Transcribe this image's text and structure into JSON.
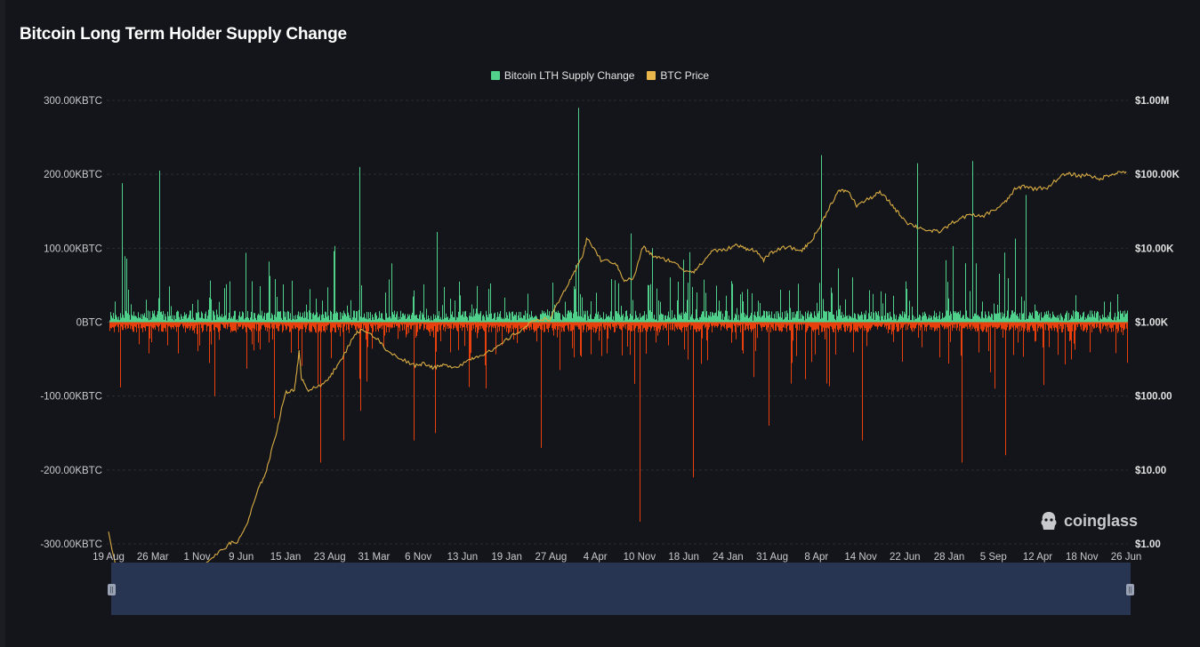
{
  "title": "Bitcoin Long Term Holder Supply Change",
  "legend": [
    {
      "name": "Bitcoin LTH Supply Change",
      "color": "#4fd18b"
    },
    {
      "name": "BTC Price",
      "color": "#e8b64a"
    }
  ],
  "watermark": "coinglass",
  "colors": {
    "background": "#14151a",
    "positive_bar": "#4fd18b",
    "negative_bar": "#e8400d",
    "price_line": "#d9ad43",
    "grid": "#2a2c33",
    "navigator": "#273552",
    "navigator_line": "#6f86c2"
  },
  "chart_data": {
    "type": "bar",
    "series": [
      {
        "name": "Bitcoin LTH Supply Change",
        "axis": "left",
        "unit": "BTC"
      },
      {
        "name": "BTC Price",
        "axis": "right",
        "type": "line",
        "scale": "log",
        "unit": "USD"
      }
    ],
    "y_left": {
      "range": [
        -300000,
        300000
      ],
      "ticks": [
        {
          "value": 300000,
          "label": "300.00KBTC"
        },
        {
          "value": 200000,
          "label": "200.00KBTC"
        },
        {
          "value": 100000,
          "label": "100.00KBTC"
        },
        {
          "value": 0,
          "label": "0BTC"
        },
        {
          "value": -100000,
          "label": "-100.00KBTC"
        },
        {
          "value": -200000,
          "label": "-200.00KBTC"
        },
        {
          "value": -300000,
          "label": "-300.00KBTC"
        }
      ]
    },
    "y_right": {
      "scale": "log",
      "range": [
        1,
        1000000
      ],
      "ticks": [
        {
          "value": 1000000,
          "label": "$1.00M"
        },
        {
          "value": 100000,
          "label": "$100.00K"
        },
        {
          "value": 10000,
          "label": "$10.00K"
        },
        {
          "value": 1000,
          "label": "$1.00K"
        },
        {
          "value": 100,
          "label": "$100.00"
        },
        {
          "value": 10,
          "label": "$10.00"
        },
        {
          "value": 1,
          "label": "$1.00"
        }
      ]
    },
    "x_ticks": [
      "19 Aug",
      "26 Mar",
      "1 Nov",
      "9 Jun",
      "15 Jan",
      "23 Aug",
      "31 Mar",
      "6 Nov",
      "13 Jun",
      "19 Jan",
      "27 Aug",
      "4 Apr",
      "10 Nov",
      "18 Jun",
      "24 Jan",
      "31 Aug",
      "8 Apr",
      "14 Nov",
      "22 Jun",
      "28 Jan",
      "5 Sep",
      "12 Apr",
      "18 Nov",
      "26 Jun"
    ],
    "price_points": [
      [
        0,
        1.4
      ],
      [
        0.3,
        0.22
      ],
      [
        0.6,
        0.32
      ],
      [
        1.0,
        0.2
      ],
      [
        1.3,
        0.32
      ],
      [
        1.6,
        0.3
      ],
      [
        2.0,
        0.5
      ],
      [
        2.3,
        0.7
      ],
      [
        2.6,
        1.0
      ],
      [
        2.8,
        1.1
      ],
      [
        3.0,
        2.0
      ],
      [
        3.2,
        5.0
      ],
      [
        3.4,
        10.0
      ],
      [
        3.6,
        30
      ],
      [
        3.8,
        110
      ],
      [
        4.0,
        120
      ],
      [
        4.1,
        400
      ],
      [
        4.15,
        180
      ],
      [
        4.3,
        120
      ],
      [
        4.6,
        140
      ],
      [
        4.8,
        200
      ],
      [
        5.0,
        300
      ],
      [
        5.3,
        700
      ],
      [
        5.5,
        800
      ],
      [
        5.8,
        580
      ],
      [
        6.0,
        400
      ],
      [
        6.3,
        320
      ],
      [
        6.6,
        260
      ],
      [
        6.8,
        280
      ],
      [
        7.0,
        240
      ],
      [
        7.2,
        260
      ],
      [
        7.5,
        250
      ],
      [
        7.8,
        320
      ],
      [
        8.0,
        360
      ],
      [
        8.3,
        420
      ],
      [
        8.6,
        600
      ],
      [
        8.9,
        800
      ],
      [
        9.2,
        1100
      ],
      [
        9.5,
        1100
      ],
      [
        9.8,
        2600
      ],
      [
        10.0,
        4300
      ],
      [
        10.2,
        8000
      ],
      [
        10.3,
        13800
      ],
      [
        10.6,
        6900
      ],
      [
        10.9,
        6400
      ],
      [
        11.1,
        3700
      ],
      [
        11.3,
        3900
      ],
      [
        11.5,
        10500
      ],
      [
        11.7,
        8000
      ],
      [
        11.9,
        7200
      ],
      [
        12.1,
        6800
      ],
      [
        12.4,
        5000
      ],
      [
        12.6,
        4900
      ],
      [
        12.8,
        6500
      ],
      [
        13.0,
        9500
      ],
      [
        13.2,
        9200
      ],
      [
        13.5,
        11000
      ],
      [
        13.7,
        10000
      ],
      [
        13.9,
        9500
      ],
      [
        14.1,
        7000
      ],
      [
        14.3,
        9000
      ],
      [
        14.6,
        10500
      ],
      [
        14.9,
        9200
      ],
      [
        15.1,
        12000
      ],
      [
        15.3,
        19000
      ],
      [
        15.5,
        35000
      ],
      [
        15.7,
        58000
      ],
      [
        15.9,
        61000
      ],
      [
        16.1,
        38000
      ],
      [
        16.4,
        48000
      ],
      [
        16.6,
        57000
      ],
      [
        16.8,
        43000
      ],
      [
        17.0,
        30000
      ],
      [
        17.2,
        22000
      ],
      [
        17.4,
        19500
      ],
      [
        17.7,
        17000
      ],
      [
        17.9,
        16800
      ],
      [
        18.2,
        23000
      ],
      [
        18.5,
        28000
      ],
      [
        18.8,
        27000
      ],
      [
        19.1,
        34000
      ],
      [
        19.3,
        42000
      ],
      [
        19.5,
        62000
      ],
      [
        19.7,
        70000
      ],
      [
        19.9,
        64000
      ],
      [
        20.2,
        66000
      ],
      [
        20.5,
        96000
      ],
      [
        20.7,
        101000
      ],
      [
        20.9,
        95000
      ],
      [
        21.1,
        100000
      ],
      [
        21.3,
        84000
      ],
      [
        21.5,
        97000
      ],
      [
        21.7,
        105000
      ],
      [
        21.9,
        109000
      ]
    ],
    "bar_baseline": 0,
    "bar_count_note": "",
    "navigator": true
  }
}
